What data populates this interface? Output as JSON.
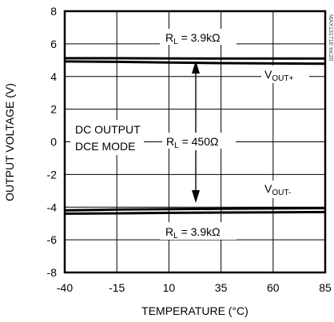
{
  "chart_data": {
    "type": "line",
    "xlabel": "TEMPERATURE (°C)",
    "ylabel": "OUTPUT VOLTAGE (V)",
    "xlim": [
      -40,
      85
    ],
    "ylim": [
      -8,
      8
    ],
    "x_ticks": [
      "-40",
      "-15",
      "10",
      "35",
      "60",
      "85"
    ],
    "y_ticks": [
      "8",
      "6",
      "4",
      "2",
      "0",
      "-2",
      "-4",
      "-6",
      "-8"
    ],
    "grid": true,
    "series": [
      {
        "x": [
          -40,
          -15,
          10,
          35,
          60,
          85
        ],
        "y": [
          5.12,
          5.12,
          5.11,
          5.1,
          5.1,
          5.1
        ]
      },
      {
        "x": [
          -40,
          -15,
          10,
          35,
          60,
          85
        ],
        "y": [
          4.92,
          4.9,
          4.86,
          4.82,
          4.8,
          4.78
        ]
      },
      {
        "x": [
          -40,
          -15,
          10,
          35,
          60,
          85
        ],
        "y": [
          -4.2,
          -4.15,
          -4.12,
          -4.1,
          -4.08,
          -4.06
        ]
      },
      {
        "x": [
          -40,
          -15,
          10,
          35,
          60,
          85
        ],
        "y": [
          -4.4,
          -4.38,
          -4.35,
          -4.33,
          -4.32,
          -4.3
        ]
      }
    ],
    "annotations": {
      "top_load_main": "R",
      "top_load_sub": "L",
      "top_load_value": " = 3.9kΩ",
      "mid_load_main": "R",
      "mid_load_sub": "L",
      "mid_load_value": " = 450Ω",
      "bottom_load_main": "R",
      "bottom_load_sub": "L",
      "bottom_load_value": " = 3.9kΩ",
      "vout_plus_main": "V",
      "vout_plus_sub": "OUT+",
      "vout_minus_main": "V",
      "vout_minus_sub": "OUT-",
      "mode_line1": "DC OUTPUT",
      "mode_line2": "DCE MODE",
      "watermark": "MAX13171E toc20"
    }
  }
}
